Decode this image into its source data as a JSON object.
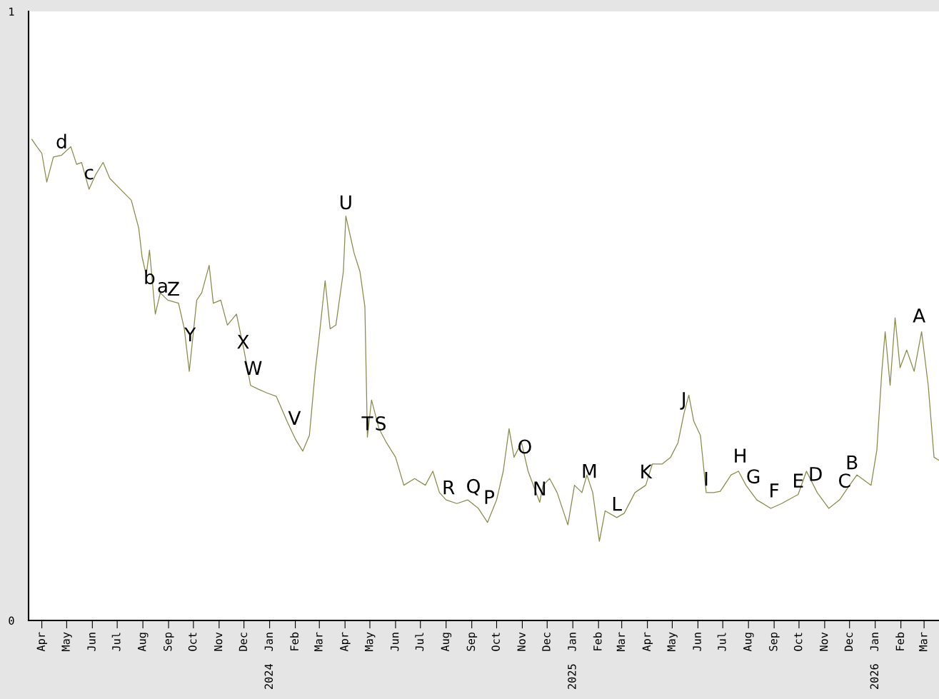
{
  "chart_data": {
    "type": "line",
    "x": [
      "2023-03-20",
      "2023-03-26",
      "2023-04-01",
      "2023-04-07",
      "2023-04-15",
      "2023-04-25",
      "2023-05-06",
      "2023-05-13",
      "2023-05-19",
      "2023-05-28",
      "2023-06-05",
      "2023-06-14",
      "2023-06-22",
      "2023-07-05",
      "2023-07-18",
      "2023-07-27",
      "2023-07-31",
      "2023-08-05",
      "2023-08-09",
      "2023-08-16",
      "2023-08-22",
      "2023-08-31",
      "2023-09-13",
      "2023-09-20",
      "2023-09-26",
      "2023-10-05",
      "2023-10-11",
      "2023-10-20",
      "2023-10-25",
      "2023-11-03",
      "2023-11-11",
      "2023-11-22",
      "2023-12-01",
      "2023-12-09",
      "2023-12-18",
      "2023-12-28",
      "2024-01-09",
      "2024-01-22",
      "2024-02-01",
      "2024-02-10",
      "2024-02-18",
      "2024-02-25",
      "2024-03-01",
      "2024-03-08",
      "2024-03-14",
      "2024-03-21",
      "2024-03-30",
      "2024-04-02",
      "2024-04-12",
      "2024-04-19",
      "2024-04-25",
      "2024-04-28",
      "2024-05-03",
      "2024-05-12",
      "2024-05-21",
      "2024-06-01",
      "2024-06-11",
      "2024-06-24",
      "2024-07-07",
      "2024-07-16",
      "2024-07-24",
      "2024-08-01",
      "2024-08-14",
      "2024-08-27",
      "2024-09-09",
      "2024-09-20",
      "2024-10-01",
      "2024-10-09",
      "2024-10-16",
      "2024-10-22",
      "2024-10-31",
      "2024-11-08",
      "2024-11-22",
      "2024-11-26",
      "2024-12-04",
      "2024-12-13",
      "2024-12-26",
      "2025-01-03",
      "2025-01-12",
      "2025-01-18",
      "2025-01-25",
      "2025-02-02",
      "2025-02-09",
      "2025-02-23",
      "2025-03-04",
      "2025-03-17",
      "2025-03-30",
      "2025-04-07",
      "2025-04-19",
      "2025-04-29",
      "2025-05-08",
      "2025-05-15",
      "2025-05-21",
      "2025-05-27",
      "2025-06-04",
      "2025-06-11",
      "2025-06-20",
      "2025-06-28",
      "2025-07-11",
      "2025-07-20",
      "2025-07-29",
      "2025-08-11",
      "2025-08-28",
      "2025-09-10",
      "2025-09-30",
      "2025-10-10",
      "2025-10-23",
      "2025-11-06",
      "2025-11-19",
      "2025-12-01",
      "2025-12-10",
      "2025-12-27",
      "2026-01-03",
      "2026-01-09",
      "2026-01-13",
      "2026-01-19",
      "2026-01-25",
      "2026-01-31",
      "2026-02-08",
      "2026-02-17",
      "2026-02-26",
      "2026-03-06",
      "2026-03-13",
      "2026-03-19"
    ],
    "series": [
      {
        "color": "#8a8a4c",
        "values": [
          0.79,
          0.778,
          0.767,
          0.72,
          0.761,
          0.764,
          0.778,
          0.749,
          0.752,
          0.708,
          0.732,
          0.752,
          0.726,
          0.708,
          0.69,
          0.644,
          0.597,
          0.567,
          0.608,
          0.503,
          0.538,
          0.526,
          0.521,
          0.479,
          0.409,
          0.526,
          0.538,
          0.583,
          0.521,
          0.526,
          0.485,
          0.503,
          0.444,
          0.386,
          0.38,
          0.374,
          0.368,
          0.327,
          0.298,
          0.278,
          0.304,
          0.409,
          0.468,
          0.558,
          0.479,
          0.485,
          0.573,
          0.664,
          0.603,
          0.573,
          0.515,
          0.301,
          0.362,
          0.315,
          0.292,
          0.268,
          0.222,
          0.233,
          0.222,
          0.245,
          0.21,
          0.198,
          0.192,
          0.198,
          0.184,
          0.161,
          0.198,
          0.245,
          0.315,
          0.268,
          0.292,
          0.245,
          0.194,
          0.222,
          0.233,
          0.21,
          0.157,
          0.222,
          0.21,
          0.239,
          0.21,
          0.13,
          0.18,
          0.169,
          0.176,
          0.21,
          0.222,
          0.257,
          0.257,
          0.268,
          0.292,
          0.339,
          0.37,
          0.327,
          0.304,
          0.21,
          0.21,
          0.212,
          0.239,
          0.245,
          0.222,
          0.198,
          0.184,
          0.192,
          0.207,
          0.245,
          0.21,
          0.184,
          0.198,
          0.222,
          0.239,
          0.222,
          0.28,
          0.409,
          0.474,
          0.386,
          0.497,
          0.415,
          0.444,
          0.409,
          0.474,
          0.386,
          0.268,
          0.263
        ]
      }
    ],
    "xlim": [
      "2023-03-16",
      "2026-03-19"
    ],
    "xticks": [
      {
        "value": "2023-04-01",
        "label": "Apr"
      },
      {
        "value": "2023-05-01",
        "label": "May"
      },
      {
        "value": "2023-06-01",
        "label": "Jun"
      },
      {
        "value": "2023-07-01",
        "label": "Jul"
      },
      {
        "value": "2023-08-01",
        "label": "Aug"
      },
      {
        "value": "2023-09-01",
        "label": "Sep"
      },
      {
        "value": "2023-10-01",
        "label": "Oct"
      },
      {
        "value": "2023-11-01",
        "label": "Nov"
      },
      {
        "value": "2023-12-01",
        "label": "Dec"
      },
      {
        "value": "2024-01-01",
        "label": "Jan"
      },
      {
        "value": "2024-02-01",
        "label": "Feb"
      },
      {
        "value": "2024-03-01",
        "label": "Mar"
      },
      {
        "value": "2024-04-01",
        "label": "Apr"
      },
      {
        "value": "2024-05-01",
        "label": "May"
      },
      {
        "value": "2024-06-01",
        "label": "Jun"
      },
      {
        "value": "2024-07-01",
        "label": "Jul"
      },
      {
        "value": "2024-08-01",
        "label": "Aug"
      },
      {
        "value": "2024-09-01",
        "label": "Sep"
      },
      {
        "value": "2024-10-01",
        "label": "Oct"
      },
      {
        "value": "2024-11-01",
        "label": "Nov"
      },
      {
        "value": "2024-12-01",
        "label": "Dec"
      },
      {
        "value": "2025-01-01",
        "label": "Jan"
      },
      {
        "value": "2025-02-01",
        "label": "Feb"
      },
      {
        "value": "2025-03-01",
        "label": "Mar"
      },
      {
        "value": "2025-04-01",
        "label": "Apr"
      },
      {
        "value": "2025-05-01",
        "label": "May"
      },
      {
        "value": "2025-06-01",
        "label": "Jun"
      },
      {
        "value": "2025-07-01",
        "label": "Jul"
      },
      {
        "value": "2025-08-01",
        "label": "Aug"
      },
      {
        "value": "2025-09-01",
        "label": "Sep"
      },
      {
        "value": "2025-10-01",
        "label": "Oct"
      },
      {
        "value": "2025-11-01",
        "label": "Nov"
      },
      {
        "value": "2025-12-01",
        "label": "Dec"
      },
      {
        "value": "2026-01-01",
        "label": "Jan"
      },
      {
        "value": "2026-02-01",
        "label": "Feb"
      },
      {
        "value": "2026-03-01",
        "label": "Mar"
      }
    ],
    "x2lim": [
      "2023-03-16",
      "2026-03-19"
    ],
    "x2ticks": [
      {
        "value": "2024-01-01",
        "label": "2024"
      },
      {
        "value": "2025-01-01",
        "label": "2025"
      },
      {
        "value": "2026-01-01",
        "label": "2026"
      }
    ],
    "ylim": [
      0,
      1
    ],
    "yticks": [
      0,
      1
    ],
    "grid": false,
    "legend": false,
    "marker": "none",
    "line_style": "solid",
    "annotations": [
      {
        "text": "d",
        "x": "2023-04-25",
        "y": 0.764
      },
      {
        "text": "c",
        "x": "2023-05-28",
        "y": 0.713
      },
      {
        "text": "b",
        "x": "2023-08-09",
        "y": 0.541
      },
      {
        "text": "a",
        "x": "2023-08-25",
        "y": 0.527
      },
      {
        "text": "Z",
        "x": "2023-09-07",
        "y": 0.522
      },
      {
        "text": "Y",
        "x": "2023-09-27",
        "y": 0.447
      },
      {
        "text": "X",
        "x": "2023-11-30",
        "y": 0.435
      },
      {
        "text": "W",
        "x": "2023-12-12",
        "y": 0.392
      },
      {
        "text": "V",
        "x": "2024-01-31",
        "y": 0.31
      },
      {
        "text": "U",
        "x": "2024-04-02",
        "y": 0.664
      },
      {
        "text": "T",
        "x": "2024-04-28",
        "y": 0.301
      },
      {
        "text": "S",
        "x": "2024-05-14",
        "y": 0.301
      },
      {
        "text": "R",
        "x": "2024-08-04",
        "y": 0.196
      },
      {
        "text": "Q",
        "x": "2024-09-03",
        "y": 0.198
      },
      {
        "text": "P",
        "x": "2024-09-22",
        "y": 0.18
      },
      {
        "text": "O",
        "x": "2024-11-04",
        "y": 0.263
      },
      {
        "text": "N",
        "x": "2024-11-22",
        "y": 0.194
      },
      {
        "text": "M",
        "x": "2025-01-21",
        "y": 0.223
      },
      {
        "text": "L",
        "x": "2025-02-23",
        "y": 0.169
      },
      {
        "text": "K",
        "x": "2025-03-30",
        "y": 0.222
      },
      {
        "text": "J",
        "x": "2025-05-15",
        "y": 0.341
      },
      {
        "text": "I",
        "x": "2025-06-11",
        "y": 0.21
      },
      {
        "text": "H",
        "x": "2025-07-22",
        "y": 0.248
      },
      {
        "text": "G",
        "x": "2025-08-07",
        "y": 0.214
      },
      {
        "text": "F",
        "x": "2025-09-01",
        "y": 0.191
      },
      {
        "text": "E",
        "x": "2025-09-30",
        "y": 0.207
      },
      {
        "text": "D",
        "x": "2025-10-21",
        "y": 0.218
      },
      {
        "text": "C",
        "x": "2025-11-25",
        "y": 0.207
      },
      {
        "text": "B",
        "x": "2025-12-04",
        "y": 0.237
      },
      {
        "text": "A",
        "x": "2026-02-23",
        "y": 0.478
      }
    ]
  }
}
